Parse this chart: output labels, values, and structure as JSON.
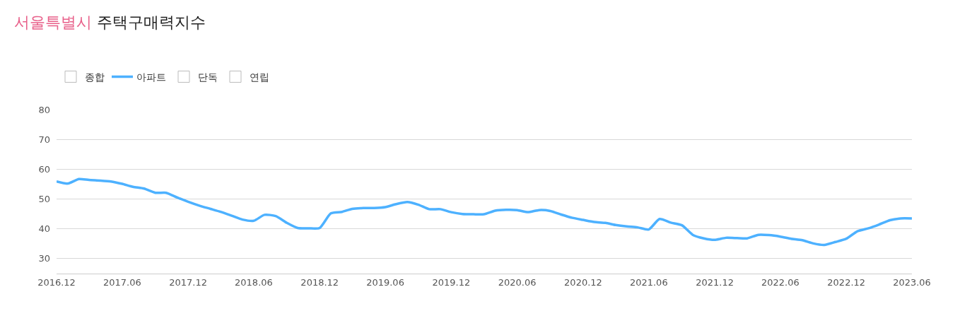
{
  "chart_data": {
    "type": "line",
    "title": "서울특별시 주택구매력지수",
    "x": [
      "2016-12",
      "2017-01",
      "2017-02",
      "2017-03",
      "2017-04",
      "2017-05",
      "2017-06",
      "2017-07",
      "2017-08",
      "2017-09",
      "2017-10",
      "2017-11",
      "2017-12",
      "2018-01",
      "2018-02",
      "2018-03",
      "2018-04",
      "2018-05",
      "2018-06",
      "2018-07",
      "2018-08",
      "2018-09",
      "2018-10",
      "2018-11",
      "2018-12",
      "2019-01",
      "2019-02",
      "2019-03",
      "2019-04",
      "2019-05",
      "2019-06",
      "2019-07",
      "2019-08",
      "2019-09",
      "2019-10",
      "2019-11",
      "2019-12",
      "2020-01",
      "2020-02",
      "2020-03",
      "2020-04",
      "2020-05",
      "2020-06",
      "2020-07",
      "2020-08",
      "2020-09",
      "2020-10",
      "2020-11",
      "2020-12",
      "2021-01",
      "2021-02",
      "2021-03",
      "2021-04",
      "2021-05",
      "2021-06",
      "2021-07",
      "2021-08",
      "2021-09",
      "2021-10",
      "2021-11",
      "2021-12",
      "2022-01",
      "2022-02",
      "2022-03",
      "2022-04",
      "2022-05",
      "2022-06",
      "2022-07",
      "2022-08",
      "2022-09",
      "2022-10",
      "2022-11",
      "2022-12",
      "2023-01",
      "2023-02",
      "2023-03",
      "2023-04",
      "2023-05",
      "2023-06"
    ],
    "series": [
      {
        "name": "종합",
        "values": [
          null,
          null,
          null,
          null,
          null,
          null,
          null,
          null,
          null,
          null,
          null,
          null,
          null,
          null,
          null,
          null,
          null,
          null,
          null,
          null,
          null,
          null,
          null,
          null,
          null,
          null,
          null,
          null,
          null,
          null,
          null,
          null,
          null,
          null,
          null,
          null,
          null,
          null,
          null,
          null,
          null,
          null,
          null,
          null,
          null,
          null,
          null,
          null,
          null,
          null,
          null,
          null,
          null,
          null,
          null,
          null,
          null,
          null,
          null,
          null,
          null,
          null,
          null,
          null,
          null,
          null,
          null,
          null,
          null,
          null,
          null,
          null,
          null,
          null,
          null,
          null,
          null,
          null,
          null
        ]
      },
      {
        "name": "아파트",
        "color": "#4db1ff",
        "values": [
          55.9,
          55.2,
          56.7,
          56.4,
          56.2,
          55.9,
          55.1,
          54.1,
          53.5,
          52.1,
          52.1,
          50.5,
          49.1,
          47.8,
          46.7,
          45.7,
          44.4,
          43.1,
          42.7,
          44.7,
          44.3,
          42.0,
          40.3,
          40.2,
          40.3,
          45.2,
          45.7,
          46.7,
          47.0,
          47.0,
          47.3,
          48.3,
          49.0,
          48.1,
          46.6,
          46.6,
          45.6,
          45.0,
          44.9,
          44.9,
          46.1,
          46.4,
          46.3,
          45.6,
          46.3,
          46.0,
          44.8,
          43.7,
          43.0,
          42.3,
          42.0,
          41.3,
          40.8,
          40.5,
          39.8,
          43.3,
          42.1,
          41.2,
          38.0,
          36.8,
          36.3,
          37.0,
          36.9,
          36.8,
          38.0,
          37.9,
          37.4,
          36.7,
          36.2,
          35.1,
          34.6,
          35.6,
          36.7,
          39.2,
          40.2,
          41.4,
          42.9,
          43.5,
          43.5
        ]
      },
      {
        "name": "단독",
        "values": [
          null,
          null,
          null,
          null,
          null,
          null,
          null,
          null,
          null,
          null,
          null,
          null,
          null,
          null,
          null,
          null,
          null,
          null,
          null,
          null,
          null,
          null,
          null,
          null,
          null,
          null,
          null,
          null,
          null,
          null,
          null,
          null,
          null,
          null,
          null,
          null,
          null,
          null,
          null,
          null,
          null,
          null,
          null,
          null,
          null,
          null,
          null,
          null,
          null,
          null,
          null,
          null,
          null,
          null,
          null,
          null,
          null,
          null,
          null,
          null,
          null,
          null,
          null,
          null,
          null,
          null,
          null,
          null,
          null,
          null,
          null,
          null,
          null,
          null,
          null,
          null,
          null,
          null,
          null
        ]
      },
      {
        "name": "연립",
        "values": [
          null,
          null,
          null,
          null,
          null,
          null,
          null,
          null,
          null,
          null,
          null,
          null,
          null,
          null,
          null,
          null,
          null,
          null,
          null,
          null,
          null,
          null,
          null,
          null,
          null,
          null,
          null,
          null,
          null,
          null,
          null,
          null,
          null,
          null,
          null,
          null,
          null,
          null,
          null,
          null,
          null,
          null,
          null,
          null,
          null,
          null,
          null,
          null,
          null,
          null,
          null,
          null,
          null,
          null,
          null,
          null,
          null,
          null,
          null,
          null,
          null,
          null,
          null,
          null,
          null,
          null,
          null,
          null,
          null,
          null,
          null,
          null,
          null,
          null,
          null,
          null,
          null,
          null,
          null
        ]
      }
    ],
    "xlim": [
      "2016-12",
      "2023-06"
    ],
    "xticks": [
      {
        "value": "2016-12",
        "label": "2016.12"
      },
      {
        "value": "2017-06",
        "label": "2017.06"
      },
      {
        "value": "2017-12",
        "label": "2017.12"
      },
      {
        "value": "2018-06",
        "label": "2018.06"
      },
      {
        "value": "2018-12",
        "label": "2018.12"
      },
      {
        "value": "2019-06",
        "label": "2019.06"
      },
      {
        "value": "2019-12",
        "label": "2019.12"
      },
      {
        "value": "2020-06",
        "label": "2020.06"
      },
      {
        "value": "2020-12",
        "label": "2020.12"
      },
      {
        "value": "2021-06",
        "label": "2021.06"
      },
      {
        "value": "2021-12",
        "label": "2021.12"
      },
      {
        "value": "2022-06",
        "label": "2022.06"
      },
      {
        "value": "2022-12",
        "label": "2022.12"
      },
      {
        "value": "2023-06",
        "label": "2023.06"
      }
    ],
    "ylim": [
      25,
      80
    ],
    "yticks": [
      30,
      40,
      50,
      60,
      70,
      80
    ],
    "grid": "y",
    "legend": "top left",
    "marker": "none",
    "line_style": "solid"
  }
}
